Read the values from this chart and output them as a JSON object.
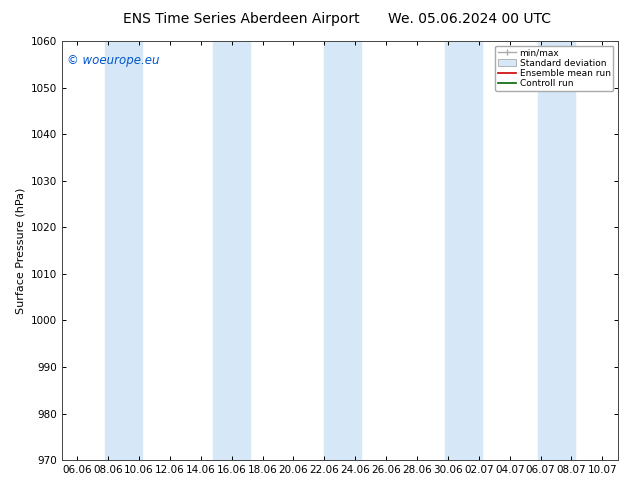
{
  "title_left": "ENS Time Series Aberdeen Airport",
  "title_right": "We. 05.06.2024 00 UTC",
  "ylabel": "Surface Pressure (hPa)",
  "ylim": [
    970,
    1060
  ],
  "yticks": [
    970,
    980,
    990,
    1000,
    1010,
    1020,
    1030,
    1040,
    1050,
    1060
  ],
  "xtick_labels": [
    "06.06",
    "08.06",
    "10.06",
    "12.06",
    "14.06",
    "16.06",
    "18.06",
    "20.06",
    "22.06",
    "24.06",
    "26.06",
    "28.06",
    "30.06",
    "02.07",
    "04.07",
    "06.07",
    "08.07",
    "10.07"
  ],
  "watermark": "© woeurope.eu",
  "legend_entries": [
    "min/max",
    "Standard deviation",
    "Ensemble mean run",
    "Controll run"
  ],
  "band_color": "#d6e8f7",
  "background_color": "#ffffff",
  "title_fontsize": 10,
  "axis_fontsize": 8,
  "tick_fontsize": 7.5,
  "watermark_color": "#0055cc",
  "figsize": [
    6.34,
    4.9
  ],
  "dpi": 100
}
